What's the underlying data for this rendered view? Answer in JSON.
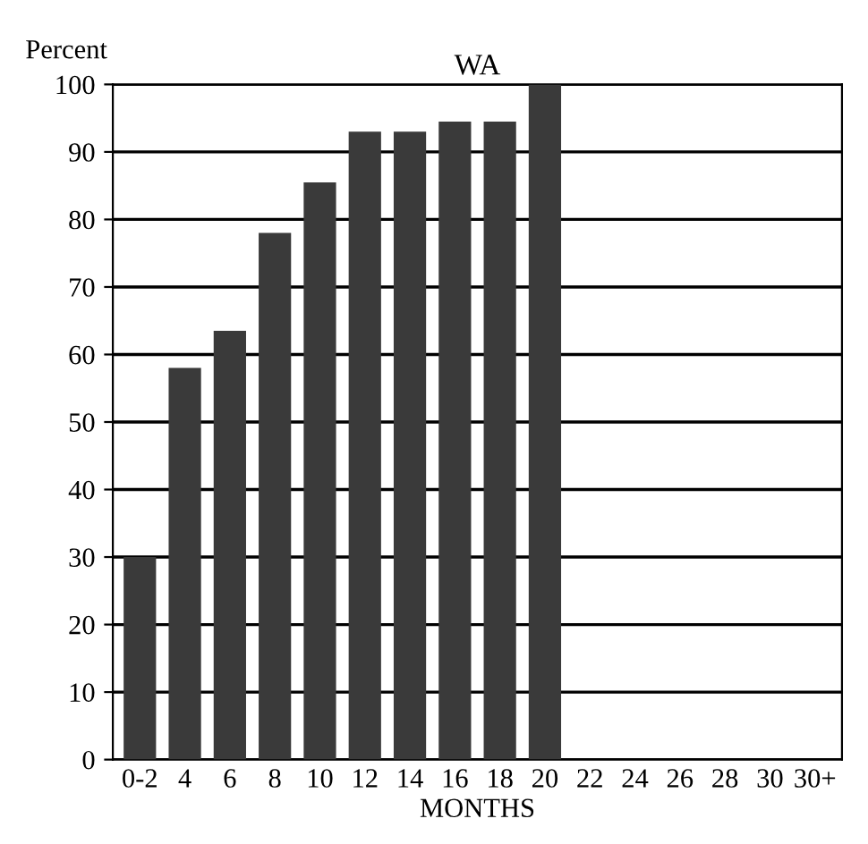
{
  "chart_data": {
    "type": "bar",
    "title": "WA",
    "ylabel": "Percent",
    "xlabel": "MONTHS",
    "categories": [
      "0-2",
      "4",
      "6",
      "8",
      "10",
      "12",
      "14",
      "16",
      "18",
      "20",
      "22",
      "24",
      "26",
      "28",
      "30",
      "30+"
    ],
    "values": [
      30,
      58,
      63.5,
      78,
      85.5,
      93,
      93,
      94.5,
      94.5,
      100,
      null,
      null,
      null,
      null,
      null,
      null
    ],
    "color": "#3a3a3a",
    "ylim": [
      0,
      100
    ],
    "yticks": [
      0,
      10,
      20,
      30,
      40,
      50,
      60,
      70,
      80,
      90,
      100
    ],
    "grid": "y",
    "legend": false
  }
}
